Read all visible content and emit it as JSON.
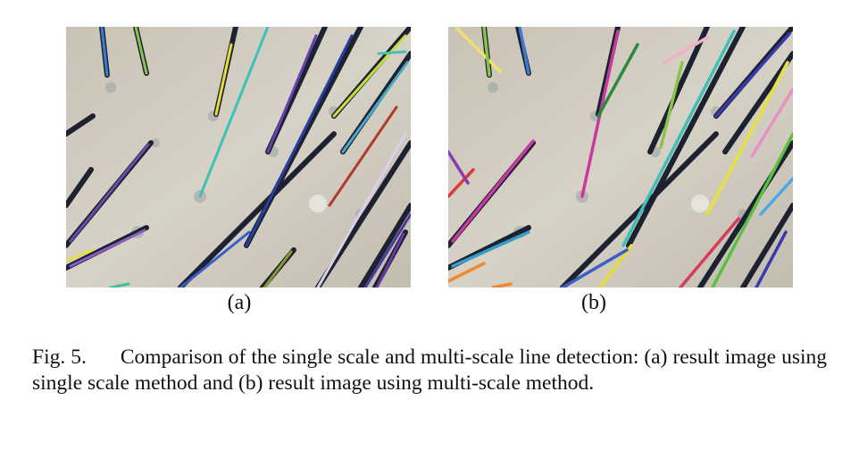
{
  "figure": {
    "panels": [
      {
        "label": "(a)",
        "description_icon": "scalp-hair-line-detection-single-scale"
      },
      {
        "label": "(b)",
        "description_icon": "scalp-hair-line-detection-multi-scale"
      }
    ],
    "caption": {
      "number": "Fig. 5.",
      "text": "Comparison of the single scale and multi-scale line detection: (a) result image using single scale method and (b) result image using multi-scale method."
    }
  }
}
